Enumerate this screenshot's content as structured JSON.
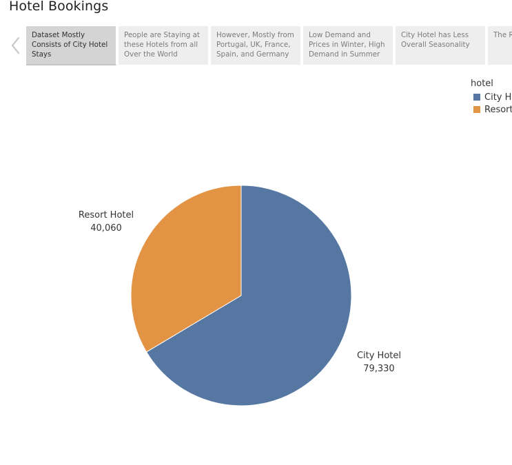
{
  "header": {
    "title": "Hotel Bookings"
  },
  "story": {
    "points": [
      {
        "label": "Dataset Mostly Consists of City Hotel Stays",
        "active": true
      },
      {
        "label": "People are Staying at these Hotels from all Over the World",
        "active": false
      },
      {
        "label": "However, Mostly from Portugal, UK, France, Spain, and Germany",
        "active": false
      },
      {
        "label": "Low Demand and Prices in Winter, High Demand in Summer",
        "active": false
      },
      {
        "label": "City Hotel has Less Overall Seasonality",
        "active": false
      },
      {
        "label": "The Re Prices Simila",
        "active": false
      }
    ]
  },
  "legend": {
    "title": "hotel",
    "items": [
      {
        "label": "City Hotel",
        "color": "#5577a2",
        "icon": "blue-square-swatch"
      },
      {
        "label": "Resort Hotel",
        "color": "#e39344",
        "icon": "orange-square-swatch"
      }
    ]
  },
  "icons": {
    "previous": "chevron-left-icon"
  },
  "chart_data": {
    "type": "pie",
    "series": [
      {
        "name": "City Hotel",
        "value": 79330,
        "display": "79,330",
        "color": "#5577a2"
      },
      {
        "name": "Resort Hotel",
        "value": 40060,
        "display": "40,060",
        "color": "#e39344"
      }
    ],
    "start": "12 o'clock",
    "direction": "clockwise",
    "legend_title": "hotel",
    "legend_position": "top-right"
  }
}
